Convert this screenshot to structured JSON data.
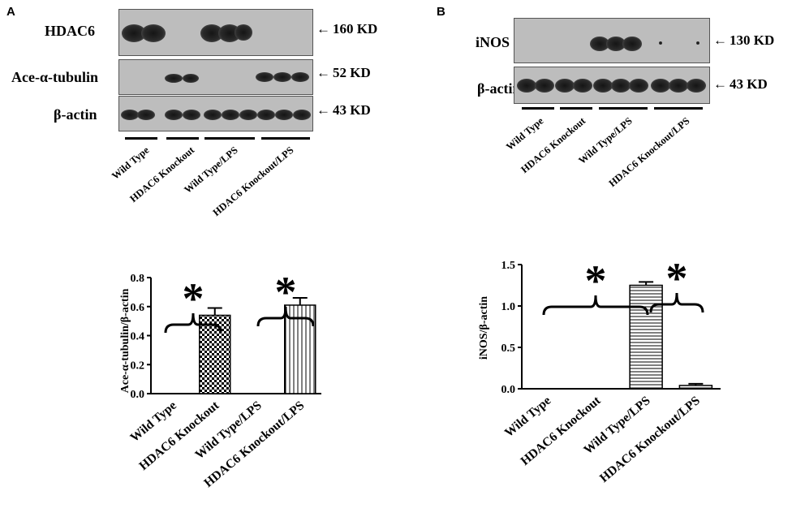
{
  "panels": {
    "a": {
      "letter": "A",
      "blot": {
        "rows": [
          {
            "label": "HDAC6",
            "kd": "160 KD"
          },
          {
            "label": "Ace-α-tubulin",
            "kd": "52 KD"
          },
          {
            "label": "β-actin",
            "kd": "43 KD"
          }
        ],
        "lanes": [
          "Wild Type",
          "HDAC6 Knockout",
          "Wild Type/LPS",
          "HDAC6 Knockout/LPS"
        ]
      }
    },
    "b": {
      "letter": "B",
      "blot": {
        "rows": [
          {
            "label": "iNOS",
            "kd": "130 KD"
          },
          {
            "label": "β-actin",
            "kd": "43 KD"
          }
        ],
        "lanes": [
          "Wild Type",
          "HDAC6 Knockout",
          "Wild Type/LPS",
          "HDAC6 Knockout/LPS"
        ]
      }
    }
  },
  "chart_data": [
    {
      "type": "bar",
      "categories": [
        "Wild Type",
        "HDAC6 Knockout",
        "Wild Type/LPS",
        "HDAC6 Knockout/LPS"
      ],
      "values": [
        0.0,
        0.54,
        0.0,
        0.61
      ],
      "errors": [
        0.0,
        0.05,
        0.0,
        0.05
      ],
      "patterns": [
        "none",
        "checker",
        "none",
        "vertical-lines"
      ],
      "ylabel": "Ace-α-tubulin/β-actin",
      "ylim": [
        0.0,
        0.8
      ],
      "yticks": [
        "0.0",
        "0.2",
        "0.4",
        "0.6",
        "0.8"
      ],
      "significance": [
        "*",
        "*"
      ]
    },
    {
      "type": "bar",
      "categories": [
        "Wild Type",
        "HDAC6 Knockout",
        "Wild Type/LPS",
        "HDAC6 Knockout/LPS"
      ],
      "values": [
        0.0,
        0.0,
        1.25,
        0.04
      ],
      "errors": [
        0.0,
        0.0,
        0.04,
        0.02
      ],
      "patterns": [
        "none",
        "none",
        "horizontal-lines",
        "horizontal-lines"
      ],
      "ylabel": "iNOS/β-actin",
      "ylim": [
        0.0,
        1.5
      ],
      "yticks": [
        "0.0",
        "0.5",
        "1.0",
        "1.5"
      ],
      "significance": [
        "*",
        "*"
      ]
    }
  ]
}
